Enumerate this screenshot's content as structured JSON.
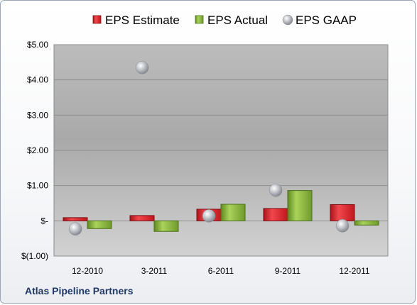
{
  "company": "Atlas Pipeline Partners",
  "chart_data": {
    "type": "bar",
    "title": "",
    "xlabel": "",
    "ylabel": "",
    "categories": [
      "12-2010",
      "3-2011",
      "6-2011",
      "9-2011",
      "12-2011"
    ],
    "series": [
      {
        "name": "EPS Estimate",
        "kind": "bar",
        "color": "#e01f26",
        "values": [
          0.09,
          0.15,
          0.33,
          0.35,
          0.46
        ]
      },
      {
        "name": "EPS Actual",
        "kind": "bar",
        "color": "#8db53c",
        "values": [
          -0.22,
          -0.3,
          0.47,
          0.86,
          -0.12
        ]
      },
      {
        "name": "EPS GAAP",
        "kind": "marker",
        "color": "#b8bcc2",
        "values": [
          -0.23,
          4.35,
          0.14,
          0.87,
          -0.14
        ]
      }
    ],
    "ylim": [
      -1,
      5
    ],
    "yticks": [
      -1,
      0,
      1,
      2,
      3,
      4,
      5
    ],
    "ytick_labels": [
      "$(1.00)",
      "$-",
      "$1.00",
      "$2.00",
      "$3.00",
      "$4.00",
      "$5.00"
    ],
    "grid": true,
    "legend_position": "top"
  }
}
